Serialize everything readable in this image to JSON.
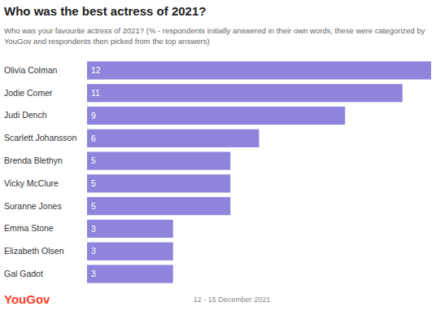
{
  "chart_data": {
    "type": "bar",
    "orientation": "horizontal",
    "title": "Who was the best actress of 2021?",
    "subtitle": "Who was your favourite actress of 2021? (% - respondents initially answered in their own words, these were categorized by YouGov and respondents then picked from the top answers)",
    "categories": [
      "Olivia Colman",
      "Jodie Comer",
      "Judi Dench",
      "Scarlett Johansson",
      "Brenda Blethyn",
      "Vicky McClure",
      "Suranne Jones",
      "Emma Stone",
      "Elizabeth Olsen",
      "Gal Gadot"
    ],
    "values": [
      12,
      11,
      9,
      6,
      5,
      5,
      5,
      3,
      3,
      3
    ],
    "color": "#8f84dc",
    "xlim": [
      0,
      12
    ],
    "data_labels": true,
    "tick_labels": "y",
    "grid": false,
    "annotations": [
      "YouGov",
      "12 - 15 December 2021"
    ]
  }
}
